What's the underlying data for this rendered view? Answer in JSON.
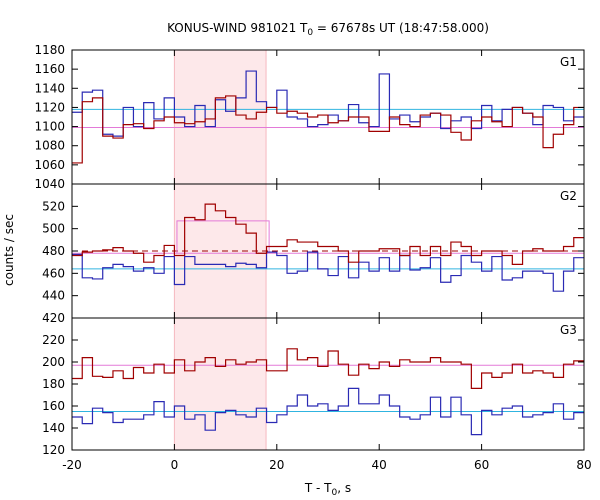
{
  "chart_data": {
    "type": "line",
    "title": "KONUS-WIND 981021 T",
    "title_sub": "0",
    "title_rest": " = 67678s UT (18:47:58.000)",
    "xlabel": "T - T",
    "xlabel_sub": "0",
    "xlabel_rest": ", s",
    "ylabel": "counts / sec",
    "xlim": [
      -20,
      80
    ],
    "x_ticks": [
      "-20",
      "0",
      "20",
      "40",
      "60",
      "80"
    ],
    "x_tick_values": [
      -20,
      0,
      20,
      40,
      60,
      80
    ],
    "shaded_interval": [
      0,
      17.9
    ],
    "colors": {
      "red": "#a00000",
      "blue": "#2a2ab4",
      "cyan": "#30b4e0",
      "pink": "#e37ad8",
      "shade": "#fde8ea",
      "shade_edge": "#f5b8c0"
    },
    "bin_edges": [
      -20,
      -18,
      -16,
      -14,
      -12,
      -10,
      -8,
      -6,
      -4,
      -2,
      0,
      2,
      4,
      6,
      8,
      10,
      12,
      14,
      16,
      18,
      20,
      22,
      24,
      26,
      28,
      30,
      32,
      34,
      36,
      38,
      40,
      42,
      44,
      46,
      48,
      50,
      52,
      54,
      56,
      58,
      60,
      62,
      64,
      66,
      68,
      70,
      72,
      74,
      76,
      78,
      80
    ],
    "panels": [
      {
        "label": "G1",
        "ylim": [
          1040,
          1180
        ],
        "y_ticks": [
          "1040",
          "1060",
          "1080",
          "1100",
          "1120",
          "1140",
          "1160",
          "1180"
        ],
        "y_tick_values": [
          1040,
          1060,
          1080,
          1100,
          1120,
          1140,
          1160,
          1180
        ],
        "series": [
          {
            "color": "red",
            "values": [
              1062,
              1126,
              1130,
              1090,
              1088,
              1102,
              1103,
              1098,
              1106,
              1110,
              1104,
              1103,
              1105,
              1108,
              1130,
              1132,
              1112,
              1108,
              1115,
              1120,
              1114,
              1116,
              1114,
              1110,
              1112,
              1104,
              1106,
              1110,
              1110,
              1095,
              1095,
              1110,
              1102,
              1100,
              1112,
              1114,
              1112,
              1094,
              1086,
              1106,
              1110,
              1105,
              1100,
              1120,
              1114,
              1110,
              1078,
              1092,
              1102,
              1120
            ]
          },
          {
            "color": "blue",
            "values": [
              1115,
              1136,
              1138,
              1092,
              1090,
              1120,
              1100,
              1125,
              1108,
              1130,
              1110,
              1100,
              1122,
              1100,
              1128,
              1116,
              1130,
              1158,
              1126,
              1120,
              1138,
              1110,
              1108,
              1100,
              1102,
              1112,
              1106,
              1123,
              1104,
              1100,
              1155,
              1108,
              1112,
              1105,
              1110,
              1114,
              1098,
              1106,
              1110,
              1098,
              1122,
              1106,
              1118,
              1120,
              1114,
              1102,
              1122,
              1120,
              1106,
              1110
            ]
          }
        ],
        "ref_lines": [
          {
            "color": "cyan",
            "value": 1118,
            "style": "solid"
          },
          {
            "color": "pink",
            "value": 1099,
            "style": "solid"
          }
        ]
      },
      {
        "label": "G2",
        "ylim": [
          420,
          540
        ],
        "y_ticks": [
          "420",
          "440",
          "460",
          "480",
          "500",
          "520"
        ],
        "y_tick_values": [
          420,
          440,
          460,
          480,
          500,
          520
        ],
        "series": [
          {
            "color": "red",
            "values": [
              476,
              479,
              480,
              481,
              483,
              480,
              478,
              470,
              476,
              485,
              476,
              510,
              508,
              522,
              516,
              510,
              504,
              496,
              478,
              484,
              484,
              490,
              488,
              488,
              484,
              484,
              480,
              470,
              480,
              480,
              482,
              482,
              476,
              484,
              476,
              484,
              476,
              488,
              484,
              476,
              480,
              480,
              476,
              468,
              480,
              482,
              480,
              480,
              484,
              492
            ]
          },
          {
            "color": "blue",
            "values": [
              477,
              456,
              455,
              465,
              468,
              466,
              462,
              465,
              460,
              475,
              450,
              475,
              468,
              468,
              468,
              466,
              469,
              468,
              465,
              479,
              476,
              460,
              462,
              479,
              464,
              458,
              475,
              456,
              470,
              462,
              474,
              462,
              476,
              463,
              465,
              474,
              452,
              458,
              476,
              470,
              462,
              475,
              454,
              456,
              462,
              462,
              460,
              444,
              462,
              474
            ]
          }
        ],
        "ref_lines": [
          {
            "color": "cyan",
            "value": 464,
            "style": "solid"
          },
          {
            "color": "red",
            "value": 480,
            "style": "dashed"
          },
          {
            "color": "pink",
            "value": 478,
            "style": "solid"
          }
        ],
        "pink_step": {
          "x_start": 0.5,
          "x_end": 18.5,
          "value": 507
        }
      },
      {
        "label": "G3",
        "ylim": [
          120,
          240
        ],
        "y_ticks": [
          "120",
          "140",
          "160",
          "180",
          "200",
          "220"
        ],
        "y_tick_values": [
          120,
          140,
          160,
          180,
          200,
          220
        ],
        "series": [
          {
            "color": "red",
            "values": [
              185,
              204,
              187,
              186,
              192,
              185,
              195,
              190,
              198,
              190,
              202,
              192,
              200,
              204,
              196,
              202,
              198,
              200,
              202,
              192,
              192,
              212,
              202,
              204,
              196,
              210,
              198,
              188,
              198,
              194,
              200,
              196,
              202,
              200,
              200,
              204,
              200,
              200,
              198,
              176,
              190,
              186,
              190,
              198,
              190,
              192,
              190,
              186,
              198,
              201
            ]
          },
          {
            "color": "blue",
            "values": [
              150,
              144,
              158,
              154,
              145,
              148,
              148,
              152,
              164,
              150,
              160,
              148,
              152,
              138,
              154,
              156,
              152,
              150,
              158,
              145,
              152,
              160,
              170,
              160,
              162,
              156,
              160,
              176,
              162,
              162,
              170,
              160,
              150,
              148,
              152,
              168,
              150,
              168,
              152,
              134,
              156,
              152,
              158,
              160,
              150,
              152,
              154,
              162,
              148,
              154
            ]
          }
        ],
        "ref_lines": [
          {
            "color": "cyan",
            "value": 155,
            "style": "solid"
          },
          {
            "color": "pink",
            "value": 197,
            "style": "solid"
          }
        ]
      }
    ]
  }
}
